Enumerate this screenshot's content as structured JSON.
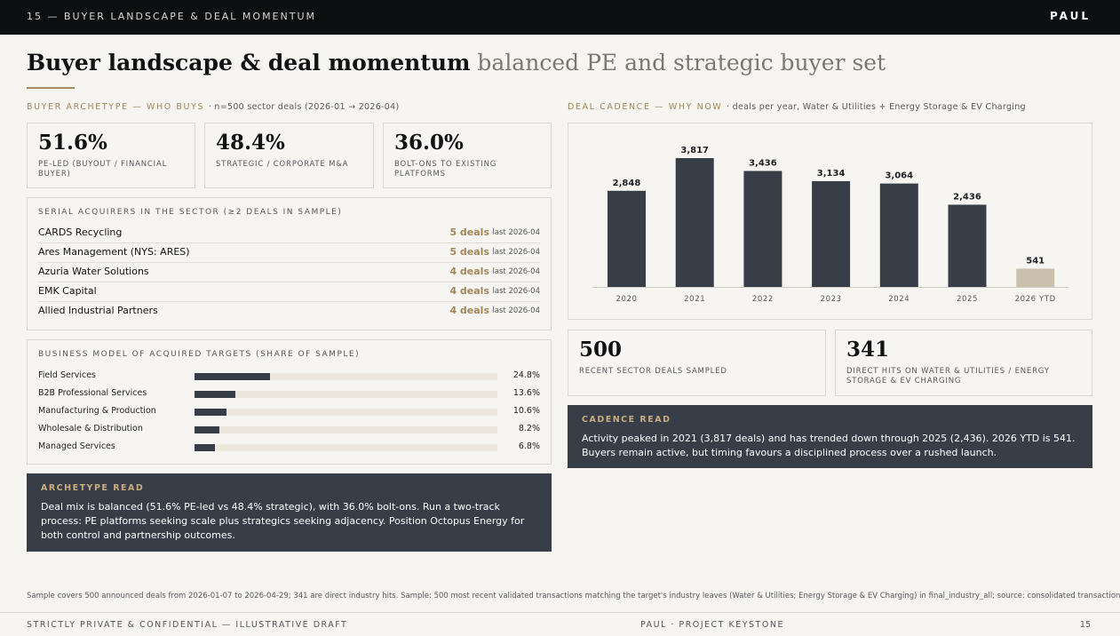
{
  "topbar": {
    "section": "15 — BUYER LANDSCAPE & DEAL MOMENTUM",
    "brand": "PAUL"
  },
  "title": {
    "main": "Buyer landscape & deal momentum",
    "sub": "balanced PE and strategic buyer set"
  },
  "archetype": {
    "label": "BUYER ARCHETYPE — WHO BUYS",
    "note": "· n=500 sector deals (2026-01 → 2026-04)",
    "kpis": [
      {
        "value": "51.6%",
        "label": "PE-LED (BUYOUT / FINANCIAL BUYER)"
      },
      {
        "value": "48.4%",
        "label": "STRATEGIC / CORPORATE M&A"
      },
      {
        "value": "36.0%",
        "label": "BOLT-ONS TO EXISTING PLATFORMS"
      }
    ]
  },
  "serial_acquirers": {
    "title": "SERIAL ACQUIRERS IN THE SECTOR (≥2 DEALS IN SAMPLE)",
    "rows": [
      {
        "name": "CARDS Recycling",
        "deals": "5 deals",
        "last": "last 2026-04"
      },
      {
        "name": "Ares Management (NYS: ARES)",
        "deals": "5 deals",
        "last": "last 2026-04"
      },
      {
        "name": "Azuria Water Solutions",
        "deals": "4 deals",
        "last": "last 2026-04"
      },
      {
        "name": "EMK Capital",
        "deals": "4 deals",
        "last": "last 2026-04"
      },
      {
        "name": "Allied Industrial Partners",
        "deals": "4 deals",
        "last": "last 2026-04"
      }
    ]
  },
  "business_model": {
    "title": "BUSINESS MODEL OF ACQUIRED TARGETS (SHARE OF SAMPLE)",
    "rows": [
      {
        "label": "Field Services",
        "pct": "24.8%",
        "value": 24.8
      },
      {
        "label": "B2B Professional Services",
        "pct": "13.6%",
        "value": 13.6
      },
      {
        "label": "Manufacturing & Production",
        "pct": "10.6%",
        "value": 10.6
      },
      {
        "label": "Wholesale & Distribution",
        "pct": "8.2%",
        "value": 8.2
      },
      {
        "label": "Managed Services",
        "pct": "6.8%",
        "value": 6.8
      }
    ]
  },
  "archetype_read": {
    "title": "ARCHETYPE READ",
    "text": "Deal mix is balanced (51.6% PE-led vs 48.4% strategic), with 36.0% bolt-ons. Run a two-track process: PE platforms seeking scale plus strategics seeking adjacency. Position Octopus Energy for both control and partnership outcomes."
  },
  "cadence": {
    "label": "DEAL CADENCE — WHY NOW",
    "note": "· deals per year, Water & Utilities + Energy Storage & EV Charging",
    "kpis": [
      {
        "value": "500",
        "label": "RECENT SECTOR DEALS SAMPLED"
      },
      {
        "value": "341",
        "label": "DIRECT HITS ON WATER & UTILITIES / ENERGY STORAGE & EV CHARGING"
      }
    ]
  },
  "cadence_read": {
    "title": "CADENCE READ",
    "text": "Activity peaked in 2021 (3,817 deals) and has trended down through 2025 (2,436). 2026 YTD is 541. Buyers remain active, but timing favours a disciplined process over a rushed launch."
  },
  "chart_data": {
    "type": "bar",
    "categories": [
      "2020",
      "2021",
      "2022",
      "2023",
      "2024",
      "2025",
      "2026 YTD"
    ],
    "values": [
      2848,
      3817,
      3436,
      3134,
      3064,
      2436,
      541
    ],
    "value_labels": [
      "2,848",
      "3,817",
      "3,436",
      "3,134",
      "3,064",
      "2,436",
      "541"
    ],
    "ylim": [
      0,
      3817
    ],
    "grid": false,
    "colors": {
      "bar": "#373e48",
      "ytd": "#cbbfae"
    }
  },
  "footnote": "Sample covers 500 announced deals from 2026-01-07 to 2026-04-29; 341 are direct industry hits. Sample: 500 most recent validated transactions matching the target's industry leaves (Water & Utilities; Energy Storage & EV Charging) in final_industry_all; source: consolidated transactions database.",
  "footer": {
    "left": "STRICTLY PRIVATE & CONFIDENTIAL — ILLUSTRATIVE DRAFT",
    "center": "PAUL · PROJECT KEYSTONE",
    "page": "15"
  }
}
